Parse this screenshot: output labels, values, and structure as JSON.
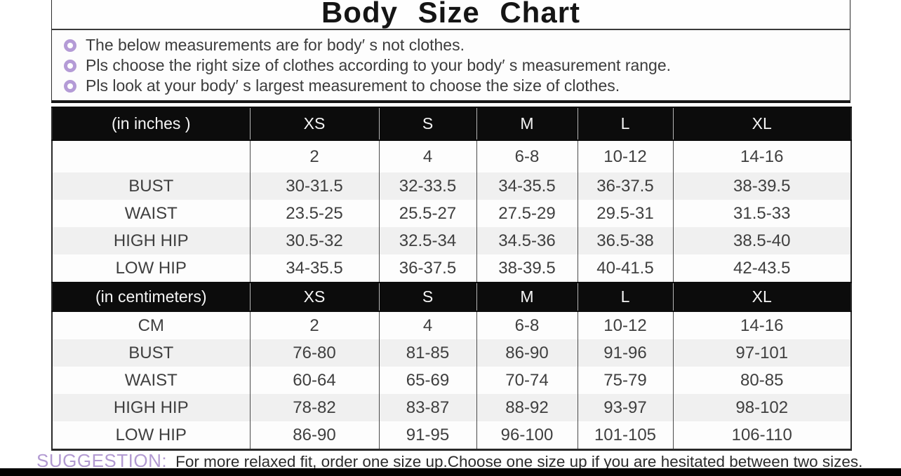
{
  "title": "Body  Size  Chart",
  "notes": [
    "The below measurements are for  body′ s not clothes.",
    "Pls choose the right size of clothes according to your body′ s  measurement range.",
    "Pls look  at your body′ s  largest measurement to choose the size of clothes."
  ],
  "chart_data": [
    {
      "type": "table",
      "title": "(in  inches )",
      "columns": [
        "(in  inches )",
        "XS",
        "S",
        "M",
        "L",
        "XL"
      ],
      "rows": [
        [
          "",
          "2",
          "4",
          "6-8",
          "10-12",
          "14-16"
        ],
        [
          "BUST",
          "30-31.5",
          "32-33.5",
          "34-35.5",
          "36-37.5",
          "38-39.5"
        ],
        [
          "WAIST",
          "23.5-25",
          "25.5-27",
          "27.5-29",
          "29.5-31",
          "31.5-33"
        ],
        [
          "HIGH HIP",
          "30.5-32",
          "32.5-34",
          "34.5-36",
          "36.5-38",
          "38.5-40"
        ],
        [
          "LOW HIP",
          "34-35.5",
          "36-37.5",
          "38-39.5",
          "40-41.5",
          "42-43.5"
        ]
      ]
    },
    {
      "type": "table",
      "title": "(in centimeters)",
      "columns": [
        "(in centimeters)",
        "XS",
        "S",
        "M",
        "L",
        "XL"
      ],
      "rows": [
        [
          "CM",
          "2",
          "4",
          "6-8",
          "10-12",
          "14-16"
        ],
        [
          "BUST",
          "76-80",
          "81-85",
          "86-90",
          "91-96",
          "97-101"
        ],
        [
          "WAIST",
          "60-64",
          "65-69",
          "70-74",
          "75-79",
          "80-85"
        ],
        [
          "HIGH HIP",
          "78-82",
          "83-87",
          "88-92",
          "93-97",
          "98-102"
        ],
        [
          "LOW HIP",
          "86-90",
          "91-95",
          "96-100",
          "101-105",
          "106-110"
        ]
      ]
    }
  ],
  "suggestion": {
    "label": "SUGGESTION:",
    "text": "For more relaxed fit, order one size up.Choose one size up if you are hesitated between two sizes."
  },
  "colors": {
    "accent_purple": "#b49bd6",
    "header_bg": "#0c0c0c",
    "shaded_row": "#f0f0f0",
    "bottom_bar": "#000000"
  }
}
